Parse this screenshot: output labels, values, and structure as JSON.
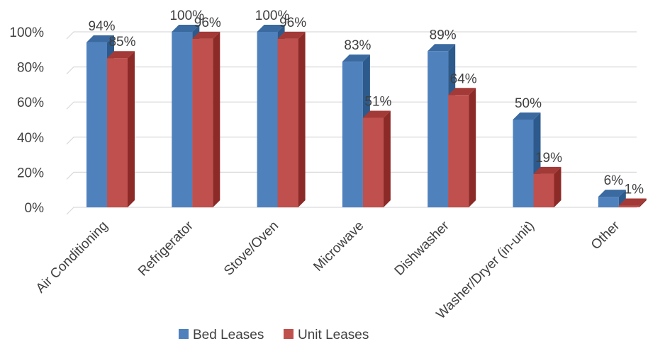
{
  "chart_data": {
    "type": "bar",
    "title": "",
    "xlabel": "",
    "ylabel": "",
    "ylim": [
      0,
      100
    ],
    "ytick_step": 20,
    "y_tick_format": "percent",
    "grid": true,
    "style": "3d-clustered-column",
    "legend_position": "bottom",
    "categories": [
      "Air Conditioning",
      "Refrigerator",
      "Stove/Oven",
      "Microwave",
      "Dishwasher",
      "Washer/Dryer (in-unit)",
      "Other"
    ],
    "series": [
      {
        "name": "Bed Leases",
        "values": [
          94,
          100,
          100,
          83,
          89,
          50,
          6
        ],
        "labels": [
          "94%",
          "100%",
          "100%",
          "83%",
          "89%",
          "50%",
          "6%"
        ],
        "color": "#4f81bd",
        "side_color": "#2d5a8c",
        "top_color": "#3a6aa0"
      },
      {
        "name": "Unit Leases",
        "values": [
          85,
          96,
          96,
          51,
          64,
          19,
          1
        ],
        "labels": [
          "85%",
          "96%",
          "96%",
          "51%",
          "64%",
          "19%",
          "1%"
        ],
        "color": "#c0504d",
        "side_color": "#8c2a28",
        "top_color": "#a33a37"
      }
    ]
  }
}
